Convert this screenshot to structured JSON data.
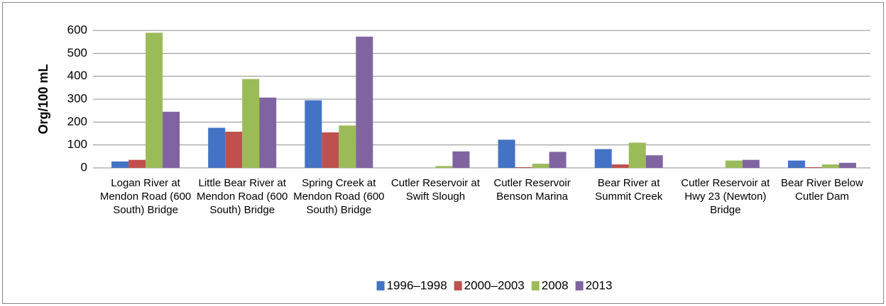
{
  "chart_data": {
    "type": "bar",
    "y_label": "Org/100 mL",
    "categories": [
      "Logan River at Mendon Road (600 South) Bridge",
      "Little Bear River at Mendon Road (600 South) Bridge",
      "Spring Creek at Mendon Road (600 South) Bridge",
      "Cutler Reservoir at Swift Slough",
      "Cutler Reservoir Benson Marina",
      "Bear River at Summit Creek",
      "Cutler Reservoir at Hwy 23 (Newton) Bridge",
      "Bear River Below Cutler Dam"
    ],
    "series": [
      {
        "name": "1996–1998",
        "color": "#4472c4",
        "values": [
          28,
          175,
          295,
          null,
          123,
          82,
          null,
          32
        ]
      },
      {
        "name": "2000–2003",
        "color": "#c0504d",
        "values": [
          35,
          158,
          155,
          null,
          3,
          15,
          null,
          3
        ]
      },
      {
        "name": "2008",
        "color": "#9bbb59",
        "values": [
          590,
          388,
          185,
          8,
          18,
          110,
          32,
          15
        ]
      },
      {
        "name": "2013",
        "color": "#8064a2",
        "values": [
          245,
          307,
          573,
          72,
          70,
          55,
          35,
          22
        ]
      }
    ],
    "ylim": [
      0,
      600
    ],
    "yticks": [
      0,
      100,
      200,
      300,
      400,
      500,
      600
    ],
    "grid": true,
    "legend": "bottom"
  }
}
